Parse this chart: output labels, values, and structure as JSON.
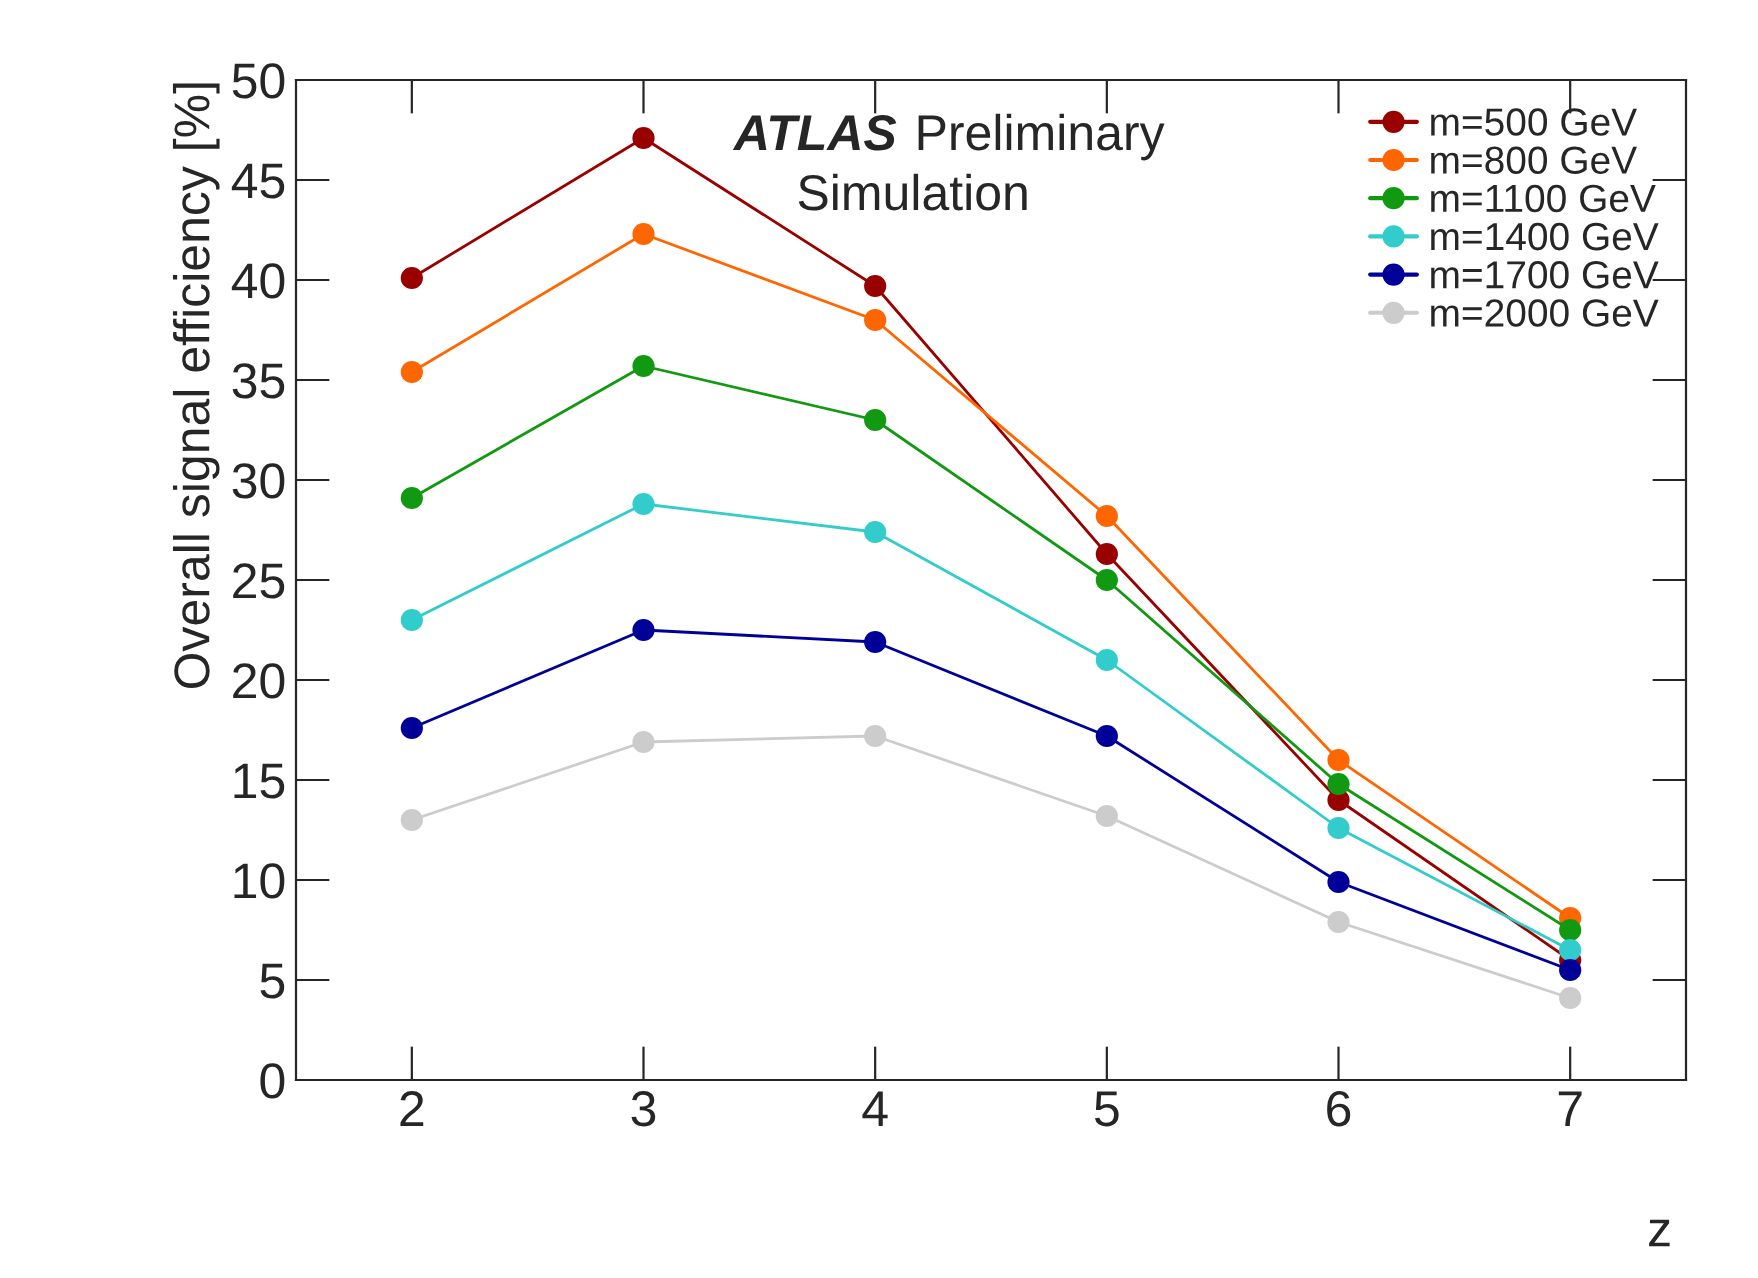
{
  "chart_data": {
    "type": "line",
    "xlabel": "z",
    "ylabel": "Overall signal efficiency [%]",
    "x": [
      2,
      3,
      4,
      5,
      6,
      7
    ],
    "series": [
      {
        "name": "m=500 GeV",
        "color": "#990000",
        "values": [
          40.1,
          47.1,
          39.7,
          26.3,
          14.0,
          6.0
        ]
      },
      {
        "name": "m=800 GeV",
        "color": "#ff6600",
        "values": [
          35.4,
          42.3,
          38.0,
          28.2,
          16.0,
          8.1
        ]
      },
      {
        "name": "m=1100 GeV",
        "color": "#119911",
        "values": [
          29.1,
          35.7,
          33.0,
          25.0,
          14.8,
          7.5
        ]
      },
      {
        "name": "m=1400 GeV",
        "color": "#33cccc",
        "values": [
          23.0,
          28.8,
          27.4,
          21.0,
          12.6,
          6.5
        ]
      },
      {
        "name": "m=1700 GeV",
        "color": "#000099",
        "values": [
          17.6,
          22.5,
          21.9,
          17.2,
          9.9,
          5.5
        ]
      },
      {
        "name": "m=2000 GeV",
        "color": "#cccccc",
        "values": [
          13.0,
          16.9,
          17.2,
          13.2,
          7.9,
          4.1
        ]
      }
    ],
    "xlim": [
      1.5,
      7.5
    ],
    "xticks": [
      2,
      3,
      4,
      5,
      6,
      7
    ],
    "ylim": [
      0,
      50
    ],
    "yticks": [
      0,
      5,
      10,
      15,
      20,
      25,
      30,
      35,
      40,
      45,
      50
    ],
    "annotations": [
      "ATLAS",
      "Preliminary",
      "Simulation"
    ],
    "legend": "top right",
    "marker": "circle",
    "line_style": "solid",
    "grid": false
  }
}
